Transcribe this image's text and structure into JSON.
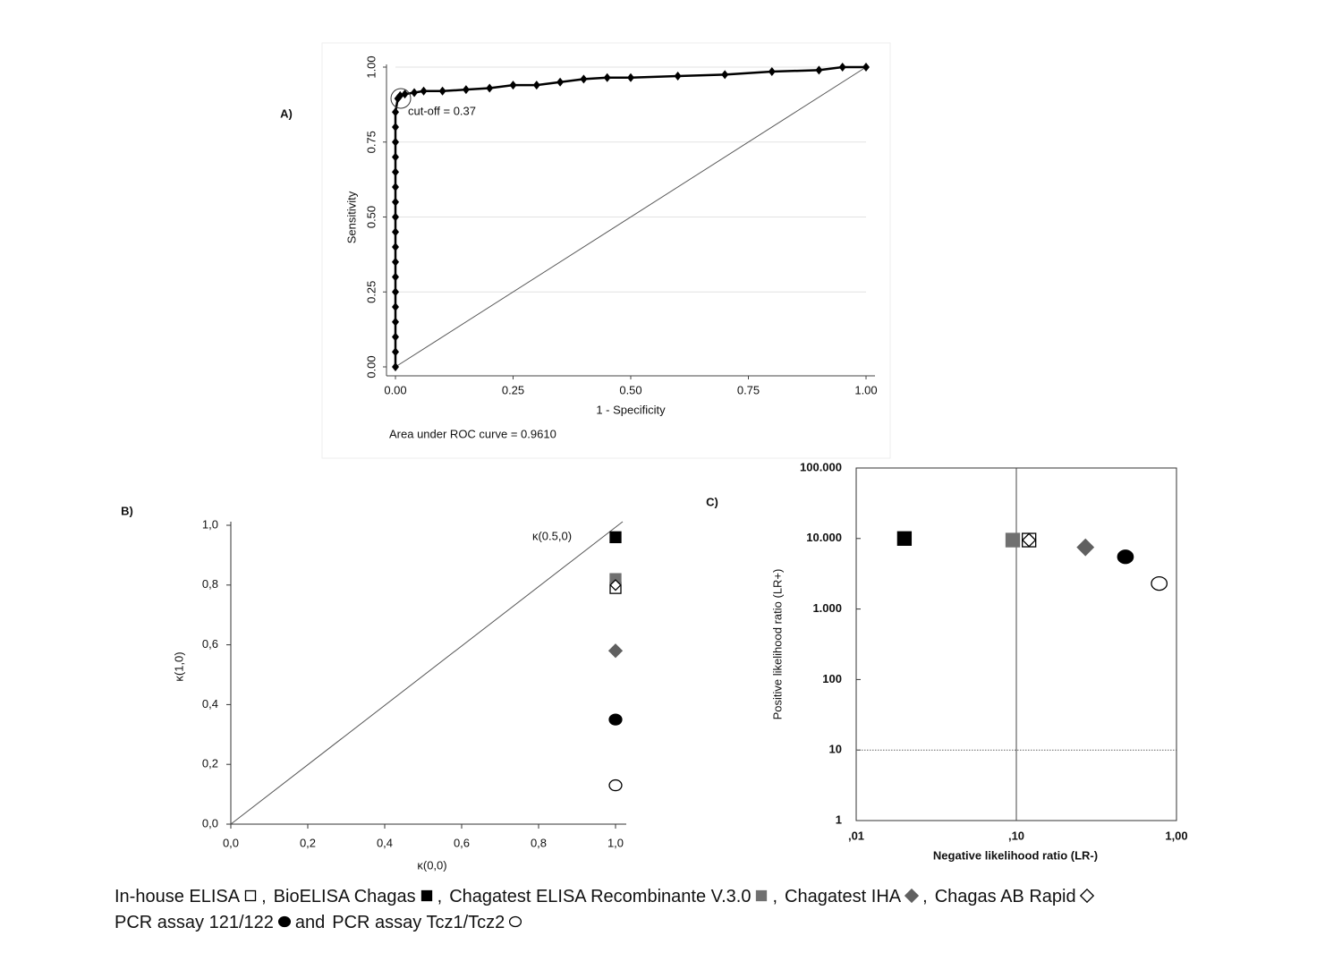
{
  "chart_data": [
    {
      "type": "line",
      "panel": "A)",
      "xlabel": "1 - Specificity",
      "ylabel": "Sensitivity",
      "annotations": [
        "cut-off = 0.37",
        "Area under ROC curve = 0.9610"
      ],
      "x": [
        0,
        0,
        0,
        0,
        0,
        0,
        0,
        0,
        0,
        0,
        0,
        0,
        0,
        0,
        0,
        0,
        0,
        0,
        0.005,
        0.01,
        0.02,
        0.04,
        0.06,
        0.1,
        0.15,
        0.2,
        0.25,
        0.3,
        0.35,
        0.4,
        0.45,
        0.5,
        0.6,
        0.7,
        0.8,
        0.9,
        0.95,
        1
      ],
      "values": [
        0,
        0.05,
        0.1,
        0.15,
        0.2,
        0.25,
        0.3,
        0.35,
        0.4,
        0.45,
        0.5,
        0.55,
        0.6,
        0.65,
        0.7,
        0.75,
        0.8,
        0.85,
        0.895,
        0.905,
        0.91,
        0.915,
        0.92,
        0.92,
        0.925,
        0.93,
        0.94,
        0.94,
        0.95,
        0.96,
        0.965,
        0.965,
        0.97,
        0.975,
        0.985,
        0.99,
        1,
        1
      ],
      "color": "#000000",
      "xlim": [
        0,
        1
      ],
      "ylim": [
        0,
        1
      ],
      "xticks": [
        {
          "value": 0,
          "label": "0.00"
        },
        {
          "value": 0.25,
          "label": "0.25"
        },
        {
          "value": 0.5,
          "label": "0.50"
        },
        {
          "value": 0.75,
          "label": "0.75"
        },
        {
          "value": 1,
          "label": "1.00"
        }
      ],
      "yticks": [
        {
          "value": 0,
          "label": "0.00"
        },
        {
          "value": 0.25,
          "label": "0.25"
        },
        {
          "value": 0.5,
          "label": "0.50"
        },
        {
          "value": 0.75,
          "label": "0.75"
        },
        {
          "value": 1,
          "label": "1.00"
        }
      ],
      "grid": true
    },
    {
      "type": "scatter",
      "panel": "B)",
      "xlabel": "κ(0,0)",
      "ylabel": "κ(1,0)",
      "annotations": [
        "κ(0.5,0)"
      ],
      "series": [
        {
          "marker": "open-square",
          "color": "#000000",
          "x": [
            1.0
          ],
          "values": [
            0.79
          ]
        },
        {
          "marker": "square",
          "color": "#000000",
          "x": [
            1.0
          ],
          "values": [
            0.96
          ]
        },
        {
          "marker": "square",
          "color": "#707070",
          "x": [
            1.0
          ],
          "values": [
            0.82
          ]
        },
        {
          "marker": "diamond",
          "color": "#606060",
          "x": [
            1.0
          ],
          "values": [
            0.58
          ]
        },
        {
          "marker": "open-diamond",
          "color": "#000000",
          "x": [
            1.0
          ],
          "values": [
            0.8
          ]
        },
        {
          "marker": "circle",
          "color": "#000000",
          "x": [
            1.0
          ],
          "values": [
            0.35
          ]
        },
        {
          "marker": "open-circle",
          "color": "#000000",
          "x": [
            1.0
          ],
          "values": [
            0.13
          ]
        }
      ],
      "xlim": [
        0,
        1
      ],
      "ylim": [
        0,
        1
      ],
      "xticks": [
        {
          "value": 0,
          "label": "0,0"
        },
        {
          "value": 0.2,
          "label": "0,2"
        },
        {
          "value": 0.4,
          "label": "0,4"
        },
        {
          "value": 0.6,
          "label": "0,6"
        },
        {
          "value": 0.8,
          "label": "0,8"
        },
        {
          "value": 1,
          "label": "1,0"
        }
      ],
      "yticks": [
        {
          "value": 0,
          "label": "0,0"
        },
        {
          "value": 0.2,
          "label": "0,2"
        },
        {
          "value": 0.4,
          "label": "0,4"
        },
        {
          "value": 0.6,
          "label": "0,6"
        },
        {
          "value": 0.8,
          "label": "0,8"
        },
        {
          "value": 1,
          "label": "1,0"
        }
      ]
    },
    {
      "type": "scatter",
      "panel": "C)",
      "xlabel": "Negative likelihood ratio (LR-)",
      "ylabel": "Positive likelihood ratio (LR+)",
      "log_x": true,
      "log_y": true,
      "xref": 0.1,
      "yref": 10,
      "series": [
        {
          "marker": "open-square",
          "color": "#000000",
          "x": [
            0.12
          ],
          "values": [
            9500
          ]
        },
        {
          "marker": "square",
          "color": "#000000",
          "x": [
            0.02
          ],
          "values": [
            10000
          ]
        },
        {
          "marker": "square",
          "color": "#707070",
          "x": [
            0.095
          ],
          "values": [
            9500
          ]
        },
        {
          "marker": "diamond",
          "color": "#606060",
          "x": [
            0.27
          ],
          "values": [
            7500
          ]
        },
        {
          "marker": "open-diamond",
          "color": "#000000",
          "x": [
            0.12
          ],
          "values": [
            9500
          ]
        },
        {
          "marker": "circle",
          "color": "#000000",
          "x": [
            0.48
          ],
          "values": [
            5500
          ]
        },
        {
          "marker": "open-circle",
          "color": "#000000",
          "x": [
            0.78
          ],
          "values": [
            2300
          ]
        }
      ],
      "xlim": [
        0.01,
        1
      ],
      "ylim": [
        1,
        100000
      ],
      "xticks": [
        {
          "value": 0.01,
          "label": ",01"
        },
        {
          "value": 0.1,
          "label": ",10"
        },
        {
          "value": 1,
          "label": "1,00"
        }
      ],
      "yticks": [
        1,
        10,
        100,
        {
          "value": 1000,
          "label": "1.000"
        },
        {
          "value": 10000,
          "label": "10.000"
        },
        {
          "value": 100000,
          "label": "100.000"
        }
      ]
    }
  ],
  "caption": [
    {
      "name": "In-house ELISA",
      "marker": "open-square",
      "color": "#000000",
      "after": ","
    },
    {
      "name": "BioELISA Chagas",
      "marker": "square",
      "color": "#000000",
      "after": ","
    },
    {
      "name": "Chagatest ELISA Recombinante V.3.0",
      "marker": "square",
      "color": "#707070",
      "after": ","
    },
    {
      "name": "Chagatest IHA",
      "marker": "diamond",
      "color": "#606060",
      "after": ","
    },
    {
      "name": "Chagas AB Rapid",
      "marker": "open-diamond",
      "color": "#000000"
    },
    {
      "name": "PCR assay 121/122",
      "marker": "circle",
      "color": "#000000",
      "after": "and"
    },
    {
      "name": "PCR assay Tcz1/Tcz2",
      "marker": "open-circle",
      "color": "#000000"
    }
  ]
}
